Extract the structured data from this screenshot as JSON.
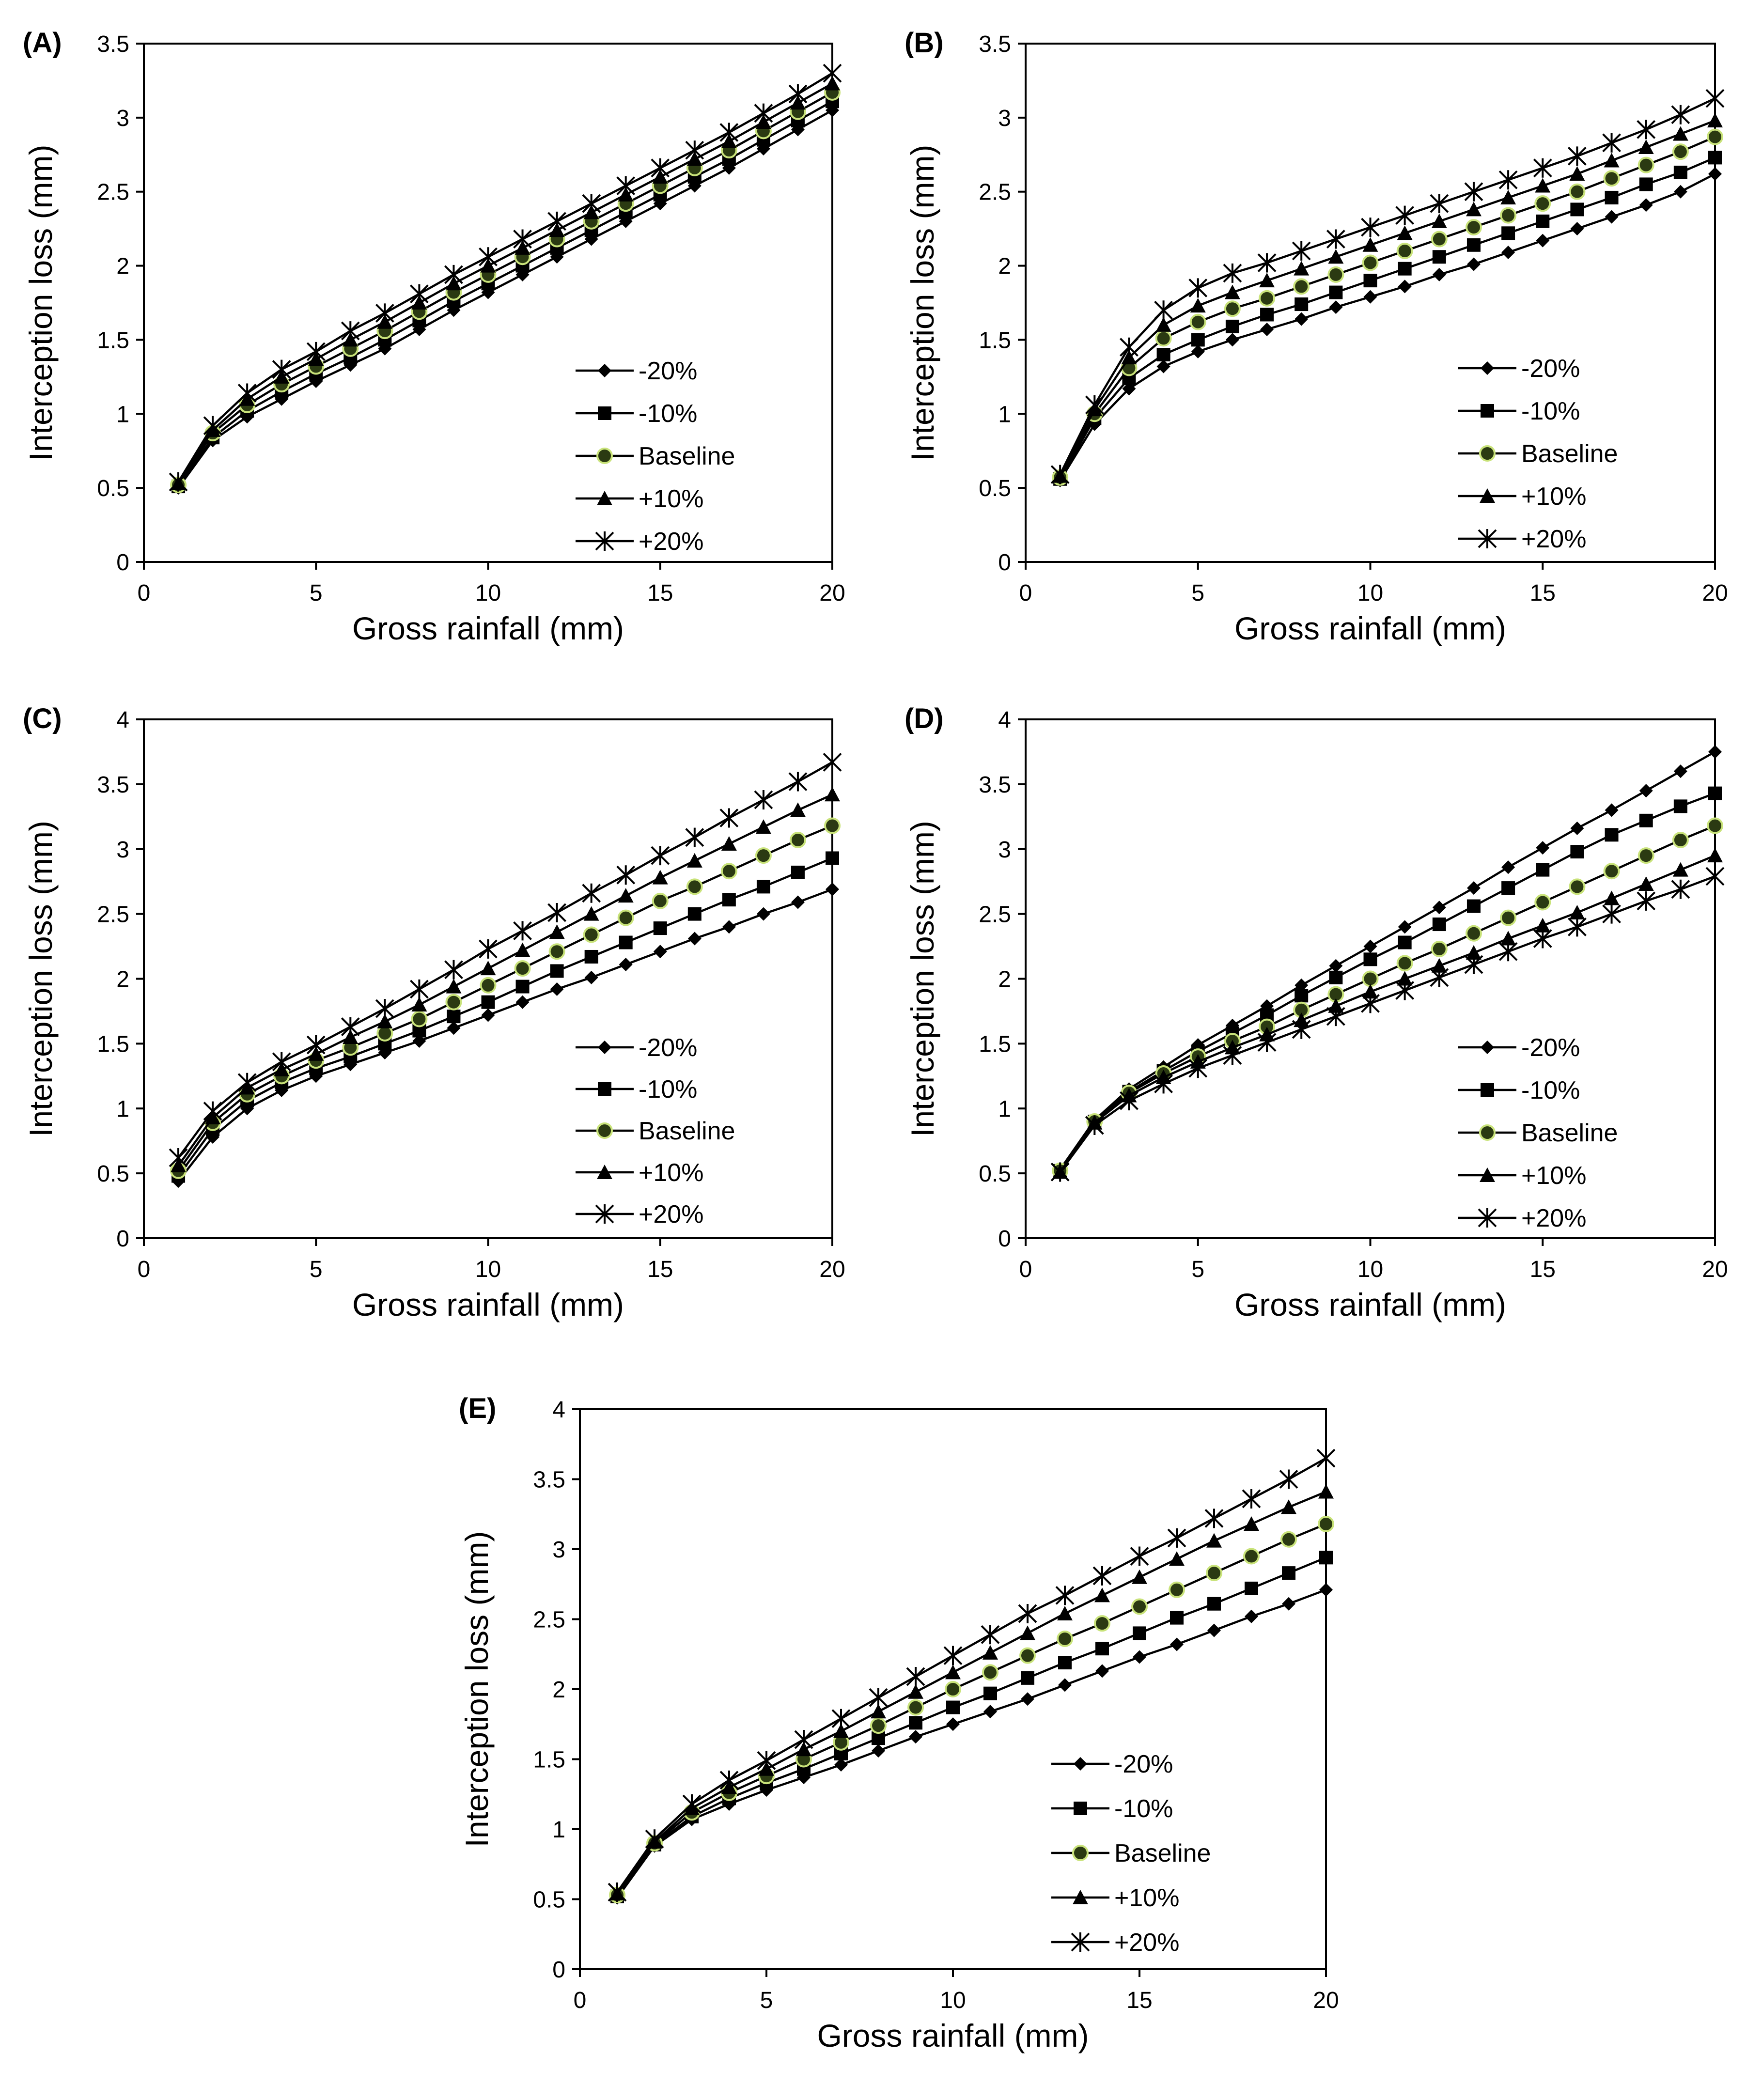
{
  "figure": {
    "description_labels_only": true
  },
  "legend": {
    "entries": [
      "-20%",
      "-10%",
      "Baseline",
      "+10%",
      "+20%"
    ],
    "markers": [
      "diamond",
      "square",
      "circle-green",
      "triangle",
      "star"
    ]
  },
  "colors": {
    "line": "#000000",
    "baseline_marker_fill": "#2b3a12",
    "baseline_marker_edge": "#c9e37a",
    "background": "#ffffff"
  },
  "chart_data": [
    {
      "panel": "(A)",
      "type": "line",
      "xlabel": "Gross rainfall (mm)",
      "ylabel": "Interception loss (mm)",
      "xlim": [
        0,
        20
      ],
      "ylim": [
        0,
        3.5
      ],
      "xticks": [
        "0",
        "5",
        "10",
        "15",
        "20"
      ],
      "yticks": [
        "0",
        "0.5",
        "1",
        "1.5",
        "2",
        "2.5",
        "3",
        "3.5"
      ],
      "x": [
        1,
        2,
        3,
        4,
        5,
        6,
        7,
        8,
        9,
        10,
        11,
        12,
        13,
        14,
        15,
        16,
        17,
        18,
        19,
        20
      ],
      "series": [
        {
          "name": "-20%",
          "values": [
            0.5,
            0.82,
            0.98,
            1.1,
            1.22,
            1.33,
            1.44,
            1.57,
            1.7,
            1.82,
            1.94,
            2.06,
            2.18,
            2.3,
            2.42,
            2.54,
            2.66,
            2.79,
            2.92,
            3.05
          ]
        },
        {
          "name": "-10%",
          "values": [
            0.51,
            0.84,
            1.02,
            1.15,
            1.27,
            1.38,
            1.5,
            1.63,
            1.76,
            1.88,
            2.0,
            2.12,
            2.24,
            2.36,
            2.48,
            2.6,
            2.72,
            2.85,
            2.98,
            3.11
          ]
        },
        {
          "name": "Baseline",
          "values": [
            0.52,
            0.87,
            1.06,
            1.2,
            1.32,
            1.44,
            1.56,
            1.69,
            1.82,
            1.94,
            2.06,
            2.18,
            2.3,
            2.42,
            2.54,
            2.66,
            2.78,
            2.91,
            3.04,
            3.17
          ]
        },
        {
          "name": "+10%",
          "values": [
            0.53,
            0.89,
            1.1,
            1.25,
            1.37,
            1.5,
            1.62,
            1.75,
            1.88,
            2.0,
            2.12,
            2.24,
            2.36,
            2.48,
            2.6,
            2.72,
            2.84,
            2.97,
            3.1,
            3.23
          ]
        },
        {
          "name": "+20%",
          "values": [
            0.54,
            0.92,
            1.14,
            1.3,
            1.42,
            1.56,
            1.68,
            1.81,
            1.94,
            2.06,
            2.18,
            2.3,
            2.42,
            2.54,
            2.66,
            2.78,
            2.9,
            3.03,
            3.16,
            3.3
          ]
        }
      ]
    },
    {
      "panel": "(B)",
      "type": "line",
      "xlabel": "Gross rainfall (mm)",
      "ylabel": "Interception loss (mm)",
      "xlim": [
        0,
        20
      ],
      "ylim": [
        0,
        3.5
      ],
      "xticks": [
        "0",
        "5",
        "10",
        "15",
        "20"
      ],
      "yticks": [
        "0",
        "0.5",
        "1",
        "1.5",
        "2",
        "2.5",
        "3",
        "3.5"
      ],
      "x": [
        1,
        2,
        3,
        4,
        5,
        6,
        7,
        8,
        9,
        10,
        11,
        12,
        13,
        14,
        15,
        16,
        17,
        18,
        19,
        20
      ],
      "series": [
        {
          "name": "-20%",
          "values": [
            0.55,
            0.93,
            1.17,
            1.32,
            1.42,
            1.5,
            1.57,
            1.64,
            1.72,
            1.79,
            1.86,
            1.94,
            2.01,
            2.09,
            2.17,
            2.25,
            2.33,
            2.41,
            2.5,
            2.62
          ]
        },
        {
          "name": "-10%",
          "values": [
            0.56,
            0.97,
            1.24,
            1.4,
            1.5,
            1.59,
            1.67,
            1.74,
            1.82,
            1.9,
            1.98,
            2.06,
            2.14,
            2.22,
            2.3,
            2.38,
            2.46,
            2.55,
            2.63,
            2.73
          ]
        },
        {
          "name": "Baseline",
          "values": [
            0.57,
            1.0,
            1.31,
            1.51,
            1.62,
            1.71,
            1.78,
            1.86,
            1.94,
            2.02,
            2.1,
            2.18,
            2.26,
            2.34,
            2.42,
            2.5,
            2.59,
            2.68,
            2.77,
            2.87
          ]
        },
        {
          "name": "+10%",
          "values": [
            0.58,
            1.03,
            1.38,
            1.6,
            1.73,
            1.82,
            1.9,
            1.98,
            2.06,
            2.14,
            2.22,
            2.3,
            2.38,
            2.46,
            2.54,
            2.62,
            2.71,
            2.8,
            2.89,
            2.98
          ]
        },
        {
          "name": "+20%",
          "values": [
            0.59,
            1.06,
            1.45,
            1.7,
            1.85,
            1.95,
            2.02,
            2.1,
            2.18,
            2.26,
            2.34,
            2.42,
            2.5,
            2.58,
            2.66,
            2.74,
            2.83,
            2.92,
            3.02,
            3.13
          ]
        }
      ]
    },
    {
      "panel": "(C)",
      "type": "line",
      "xlabel": "Gross rainfall (mm)",
      "ylabel": "Interception loss (mm)",
      "xlim": [
        0,
        20
      ],
      "ylim": [
        0,
        4
      ],
      "xticks": [
        "0",
        "5",
        "10",
        "15",
        "20"
      ],
      "yticks": [
        "0",
        "0.5",
        "1",
        "1.5",
        "2",
        "2.5",
        "3",
        "3.5",
        "4"
      ],
      "x": [
        1,
        2,
        3,
        4,
        5,
        6,
        7,
        8,
        9,
        10,
        11,
        12,
        13,
        14,
        15,
        16,
        17,
        18,
        19,
        20
      ],
      "series": [
        {
          "name": "-20%",
          "values": [
            0.44,
            0.78,
            1.0,
            1.14,
            1.25,
            1.34,
            1.43,
            1.52,
            1.62,
            1.72,
            1.82,
            1.92,
            2.01,
            2.11,
            2.21,
            2.31,
            2.4,
            2.5,
            2.59,
            2.69
          ]
        },
        {
          "name": "-10%",
          "values": [
            0.48,
            0.84,
            1.06,
            1.2,
            1.31,
            1.4,
            1.5,
            1.6,
            1.71,
            1.82,
            1.94,
            2.06,
            2.17,
            2.28,
            2.39,
            2.5,
            2.61,
            2.71,
            2.82,
            2.93
          ]
        },
        {
          "name": "Baseline",
          "values": [
            0.52,
            0.89,
            1.11,
            1.25,
            1.37,
            1.47,
            1.58,
            1.69,
            1.82,
            1.95,
            2.08,
            2.21,
            2.34,
            2.47,
            2.6,
            2.71,
            2.83,
            2.95,
            3.07,
            3.18
          ]
        },
        {
          "name": "+10%",
          "values": [
            0.56,
            0.93,
            1.16,
            1.3,
            1.42,
            1.55,
            1.67,
            1.8,
            1.94,
            2.08,
            2.22,
            2.36,
            2.5,
            2.64,
            2.78,
            2.91,
            3.04,
            3.17,
            3.3,
            3.42
          ]
        },
        {
          "name": "+20%",
          "values": [
            0.62,
            0.98,
            1.2,
            1.36,
            1.49,
            1.63,
            1.77,
            1.92,
            2.07,
            2.23,
            2.37,
            2.51,
            2.66,
            2.8,
            2.95,
            3.09,
            3.24,
            3.38,
            3.52,
            3.67
          ]
        }
      ]
    },
    {
      "panel": "(D)",
      "type": "line",
      "xlabel": "Gross rainfall (mm)",
      "ylabel": "Interception loss (mm)",
      "xlim": [
        0,
        20
      ],
      "ylim": [
        0,
        4
      ],
      "xticks": [
        "0",
        "5",
        "10",
        "15",
        "20"
      ],
      "yticks": [
        "0",
        "0.5",
        "1",
        "1.5",
        "2",
        "2.5",
        "3",
        "3.5",
        "4"
      ],
      "x": [
        1,
        2,
        3,
        4,
        5,
        6,
        7,
        8,
        9,
        10,
        11,
        12,
        13,
        14,
        15,
        16,
        17,
        18,
        19,
        20
      ],
      "series": [
        {
          "name": "-20%",
          "values": [
            0.53,
            0.91,
            1.15,
            1.32,
            1.49,
            1.64,
            1.79,
            1.95,
            2.1,
            2.25,
            2.4,
            2.55,
            2.7,
            2.86,
            3.01,
            3.16,
            3.3,
            3.45,
            3.6,
            3.75
          ]
        },
        {
          "name": "-10%",
          "values": [
            0.52,
            0.9,
            1.13,
            1.29,
            1.44,
            1.58,
            1.72,
            1.87,
            2.01,
            2.15,
            2.28,
            2.42,
            2.56,
            2.7,
            2.84,
            2.98,
            3.11,
            3.22,
            3.33,
            3.43
          ]
        },
        {
          "name": "Baseline",
          "values": [
            0.52,
            0.9,
            1.12,
            1.27,
            1.4,
            1.52,
            1.63,
            1.76,
            1.88,
            2.0,
            2.12,
            2.23,
            2.35,
            2.47,
            2.59,
            2.71,
            2.83,
            2.95,
            3.07,
            3.18
          ]
        },
        {
          "name": "+10%",
          "values": [
            0.51,
            0.89,
            1.1,
            1.24,
            1.36,
            1.47,
            1.57,
            1.68,
            1.79,
            1.9,
            2.0,
            2.1,
            2.2,
            2.31,
            2.41,
            2.51,
            2.62,
            2.73,
            2.84,
            2.95
          ]
        },
        {
          "name": "+20%",
          "values": [
            0.51,
            0.87,
            1.06,
            1.19,
            1.31,
            1.41,
            1.51,
            1.61,
            1.71,
            1.81,
            1.91,
            2.01,
            2.11,
            2.21,
            2.31,
            2.4,
            2.5,
            2.6,
            2.69,
            2.79
          ]
        }
      ]
    },
    {
      "panel": "(E)",
      "type": "line",
      "xlabel": "Gross rainfall (mm)",
      "ylabel": "Interception loss (mm)",
      "xlim": [
        0,
        20
      ],
      "ylim": [
        0,
        4
      ],
      "xticks": [
        "0",
        "5",
        "10",
        "15",
        "20"
      ],
      "yticks": [
        "0",
        "0.5",
        "1",
        "1.5",
        "2",
        "2.5",
        "3",
        "3.5",
        "4"
      ],
      "x": [
        1,
        2,
        3,
        4,
        5,
        6,
        7,
        8,
        9,
        10,
        11,
        12,
        13,
        14,
        15,
        16,
        17,
        18,
        19,
        20
      ],
      "series": [
        {
          "name": "-20%",
          "values": [
            0.51,
            0.88,
            1.07,
            1.18,
            1.28,
            1.37,
            1.46,
            1.56,
            1.66,
            1.75,
            1.84,
            1.93,
            2.03,
            2.13,
            2.23,
            2.32,
            2.42,
            2.52,
            2.61,
            2.71
          ]
        },
        {
          "name": "-10%",
          "values": [
            0.52,
            0.89,
            1.09,
            1.22,
            1.33,
            1.43,
            1.54,
            1.65,
            1.76,
            1.87,
            1.97,
            2.08,
            2.19,
            2.29,
            2.4,
            2.51,
            2.61,
            2.72,
            2.83,
            2.94
          ]
        },
        {
          "name": "Baseline",
          "values": [
            0.53,
            0.9,
            1.12,
            1.26,
            1.38,
            1.5,
            1.62,
            1.74,
            1.87,
            2.0,
            2.12,
            2.24,
            2.36,
            2.47,
            2.59,
            2.71,
            2.83,
            2.95,
            3.07,
            3.18
          ]
        },
        {
          "name": "+10%",
          "values": [
            0.54,
            0.91,
            1.15,
            1.3,
            1.43,
            1.57,
            1.7,
            1.84,
            1.98,
            2.12,
            2.26,
            2.4,
            2.54,
            2.67,
            2.8,
            2.93,
            3.06,
            3.18,
            3.3,
            3.41
          ]
        },
        {
          "name": "+20%",
          "values": [
            0.55,
            0.93,
            1.18,
            1.35,
            1.49,
            1.64,
            1.79,
            1.94,
            2.09,
            2.24,
            2.39,
            2.54,
            2.67,
            2.81,
            2.95,
            3.08,
            3.22,
            3.36,
            3.5,
            3.65
          ]
        }
      ]
    }
  ]
}
